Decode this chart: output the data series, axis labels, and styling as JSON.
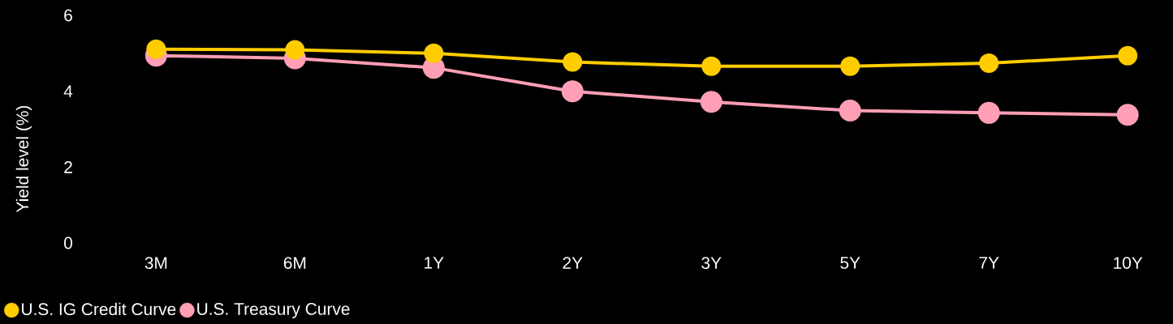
{
  "chart_data": {
    "type": "line",
    "ylabel": "Yield level (%)",
    "categories": [
      "3M",
      "6M",
      "1Y",
      "2Y",
      "3Y",
      "5Y",
      "7Y",
      "10Y"
    ],
    "series": [
      {
        "name": "U.S. IG Credit Curve",
        "color": "#ffcc00",
        "values": [
          5.11,
          5.09,
          5.0,
          4.77,
          4.66,
          4.66,
          4.74,
          4.94
        ]
      },
      {
        "name": "U.S. Treasury Curve",
        "color": "#ff9eb5",
        "values": [
          4.94,
          4.87,
          4.62,
          4.0,
          3.72,
          3.49,
          3.43,
          3.38
        ]
      }
    ],
    "ylim": [
      0,
      6
    ],
    "yticks": [
      0,
      2,
      4,
      6
    ],
    "grid": false,
    "legend": "bottom left",
    "marker": "circle",
    "line_style": "solid"
  }
}
